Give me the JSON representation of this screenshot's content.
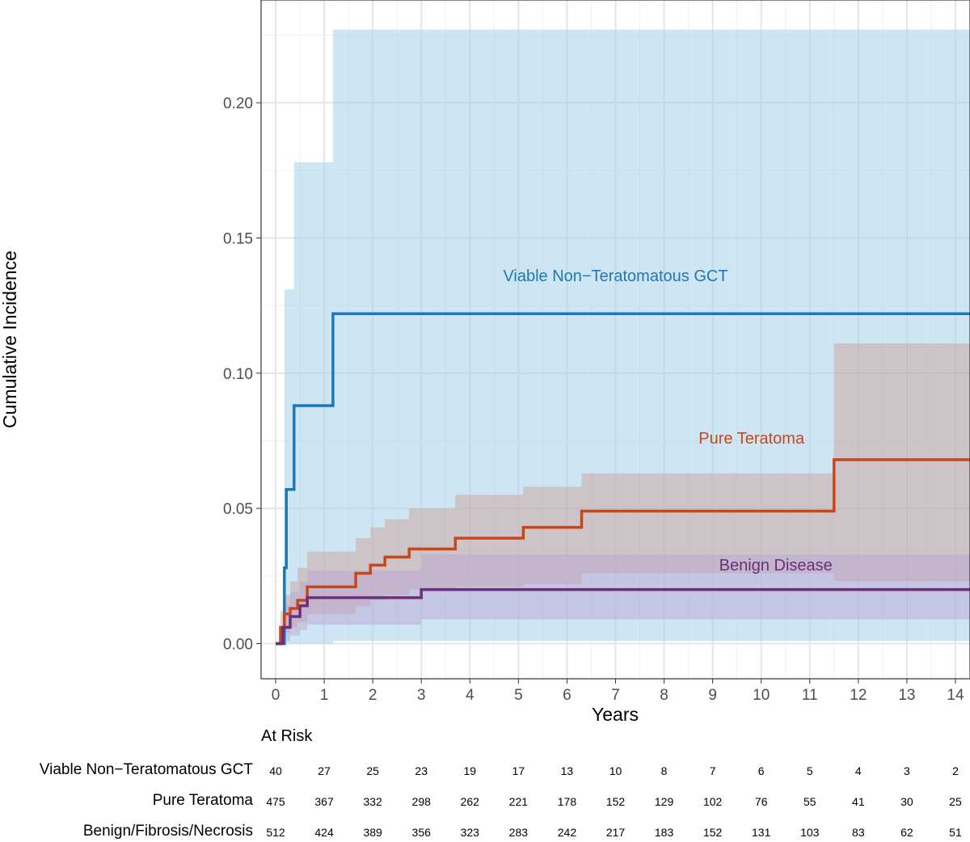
{
  "chart_data": {
    "type": "line",
    "subtype": "cumulative-incidence-step",
    "xlabel": "Years",
    "ylabel": "Cumulative Incidence",
    "xlim": [
      -0.3,
      14.3
    ],
    "ylim": [
      -0.013,
      0.238
    ],
    "x_ticks": [
      0,
      1,
      2,
      3,
      4,
      5,
      6,
      7,
      8,
      9,
      10,
      11,
      12,
      13,
      14
    ],
    "y_ticks": [
      0.0,
      0.05,
      0.1,
      0.15,
      0.2
    ],
    "y_tick_labels": [
      "0.00",
      "0.05",
      "0.10",
      "0.15",
      "0.20"
    ],
    "grid": true,
    "series": [
      {
        "name": "Viable Non−Teratomatous GCT",
        "label": "Viable Non−Teratomatous GCT",
        "label_at": [
          7.0,
          0.134
        ],
        "color": "#1f77b4",
        "band_color": "#a6d2ea",
        "band_opacity": 0.55,
        "x": [
          0,
          0.18,
          0.22,
          0.38,
          1.18,
          14.3
        ],
        "y": [
          0,
          0.028,
          0.057,
          0.088,
          0.122,
          0.122
        ],
        "upper": [
          0,
          0.131,
          0.131,
          0.178,
          0.227,
          0.227
        ],
        "lower": [
          0,
          0,
          0,
          0,
          0.001,
          0.002
        ]
      },
      {
        "name": "Pure Teratoma",
        "label": "Pure Teratoma",
        "label_at": [
          9.8,
          0.074
        ],
        "color": "#c9461b",
        "band_color": "#c9a29a",
        "band_opacity": 0.5,
        "x": [
          0,
          0.1,
          0.18,
          0.3,
          0.45,
          0.65,
          1.0,
          1.65,
          1.95,
          2.25,
          2.75,
          3.7,
          5.1,
          6.3,
          11.5,
          14.3
        ],
        "y": [
          0,
          0.006,
          0.011,
          0.013,
          0.016,
          0.021,
          0.021,
          0.026,
          0.029,
          0.032,
          0.035,
          0.039,
          0.043,
          0.049,
          0.068,
          0.068
        ],
        "upper": [
          0,
          0.012,
          0.018,
          0.023,
          0.028,
          0.034,
          0.034,
          0.039,
          0.043,
          0.046,
          0.05,
          0.055,
          0.058,
          0.063,
          0.111,
          0.111
        ],
        "lower": [
          0,
          0.001,
          0.004,
          0.006,
          0.008,
          0.011,
          0.011,
          0.014,
          0.016,
          0.018,
          0.02,
          0.021,
          0.022,
          0.026,
          0.023,
          0.023
        ]
      },
      {
        "name": "Benign Disease",
        "label": "Benign Disease",
        "label_at": [
          10.3,
          0.027
        ],
        "color": "#6e2f7a",
        "band_color": "#b9a6d6",
        "band_opacity": 0.5,
        "x": [
          0,
          0.15,
          0.3,
          0.5,
          0.65,
          3.0,
          14.3
        ],
        "y": [
          0,
          0.006,
          0.01,
          0.014,
          0.017,
          0.02,
          0.02
        ],
        "upper": [
          0,
          0.014,
          0.019,
          0.023,
          0.027,
          0.033,
          0.033
        ],
        "lower": [
          0,
          0.001,
          0.003,
          0.005,
          0.007,
          0.009,
          0.007
        ]
      }
    ]
  },
  "at_risk": {
    "title": "At Risk",
    "times": [
      0,
      1,
      2,
      3,
      4,
      5,
      6,
      7,
      8,
      9,
      10,
      11,
      12,
      13,
      14
    ],
    "rows": [
      {
        "name": "Viable Non−Teratomatous GCT",
        "values": [
          "40",
          "27",
          "25",
          "23",
          "19",
          "17",
          "13",
          "10",
          "8",
          "7",
          "6",
          "5",
          "4",
          "3",
          "2"
        ]
      },
      {
        "name": "Pure Teratoma",
        "values": [
          "475",
          "367",
          "332",
          "298",
          "262",
          "221",
          "178",
          "152",
          "129",
          "102",
          "76",
          "55",
          "41",
          "30",
          "25"
        ]
      },
      {
        "name": "Benign/Fibrosis/Necrosis",
        "values": [
          "512",
          "424",
          "389",
          "356",
          "323",
          "283",
          "242",
          "217",
          "183",
          "152",
          "131",
          "103",
          "83",
          "62",
          "51"
        ]
      }
    ]
  }
}
